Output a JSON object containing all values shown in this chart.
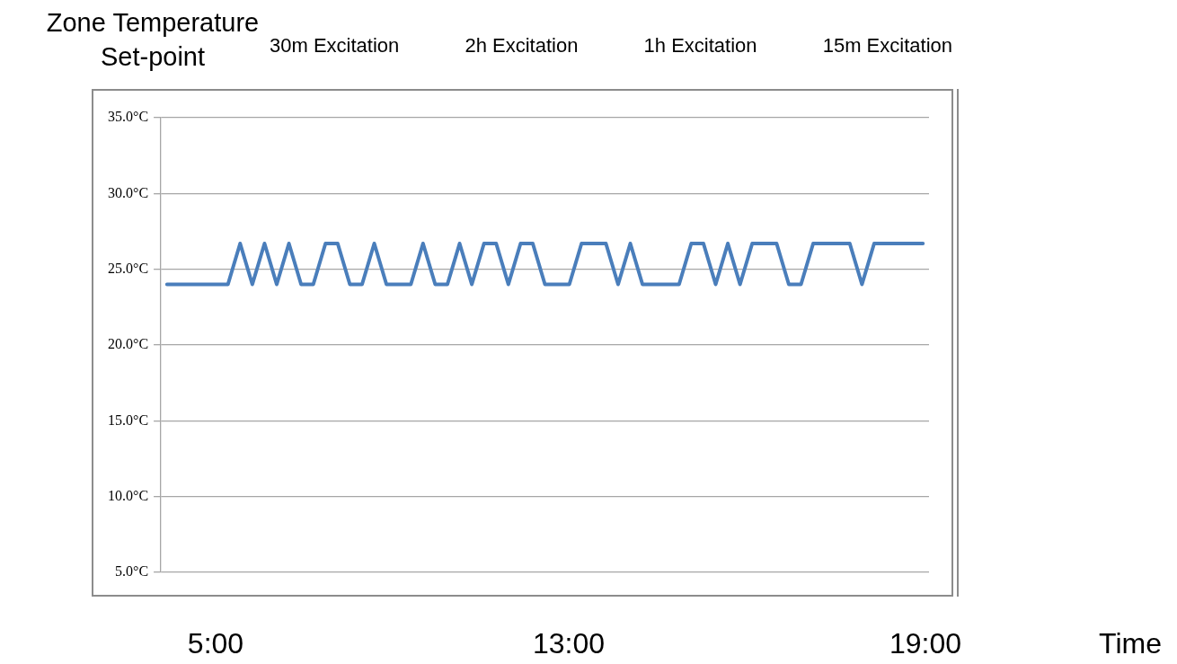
{
  "chart_data": {
    "type": "line",
    "ylabel": "Zone Temperature Set-point",
    "annotations": [
      "30m Excitation",
      "2h Excitation",
      "1h Excitation",
      "15m Excitation",
      "5:00",
      "13:00",
      "19:00",
      "Time"
    ],
    "categories": [
      null,
      null,
      null,
      null,
      null,
      null,
      null,
      null,
      null,
      null,
      null,
      null,
      null,
      null,
      null,
      null,
      null,
      null,
      null,
      null,
      null,
      null,
      null,
      null,
      null,
      null,
      null,
      null,
      null,
      null,
      null,
      null,
      null,
      null,
      null,
      null,
      null,
      null,
      null,
      null,
      null,
      null,
      null,
      null,
      null,
      null,
      null,
      null,
      null,
      null,
      null,
      null,
      null,
      null,
      null,
      null,
      null,
      null,
      null,
      null,
      null,
      null,
      null
    ],
    "series": [
      {
        "color": "#4a7ebb",
        "values": [
          24,
          24,
          24,
          24,
          24,
          24,
          26.7,
          24,
          26.7,
          24,
          26.7,
          24,
          24,
          26.7,
          26.7,
          24,
          24,
          26.7,
          24,
          24,
          24,
          26.7,
          24,
          24,
          26.7,
          24,
          26.7,
          26.7,
          24,
          26.7,
          26.7,
          24,
          24,
          24,
          26.7,
          26.7,
          26.7,
          24,
          26.7,
          24,
          24,
          24,
          24,
          26.7,
          26.7,
          24,
          26.7,
          24,
          26.7,
          26.7,
          26.7,
          24,
          24,
          26.7,
          26.7,
          26.7,
          26.7,
          24,
          26.7,
          26.7,
          26.7,
          26.7,
          26.7
        ]
      }
    ],
    "ylim": [
      5,
      35
    ],
    "yticks": [
      {
        "value": 5,
        "label": "5.0°C"
      },
      {
        "value": 10,
        "label": "10.0°C"
      },
      {
        "value": 15,
        "label": "15.0°C"
      },
      {
        "value": 20,
        "label": "20.0°C"
      },
      {
        "value": 25,
        "label": "25.0°C"
      },
      {
        "value": 30,
        "label": "30.0°C"
      },
      {
        "value": 35,
        "label": "35.0°C"
      }
    ],
    "grid": "y",
    "legend": false,
    "marker": "none",
    "line_style": "solid"
  }
}
